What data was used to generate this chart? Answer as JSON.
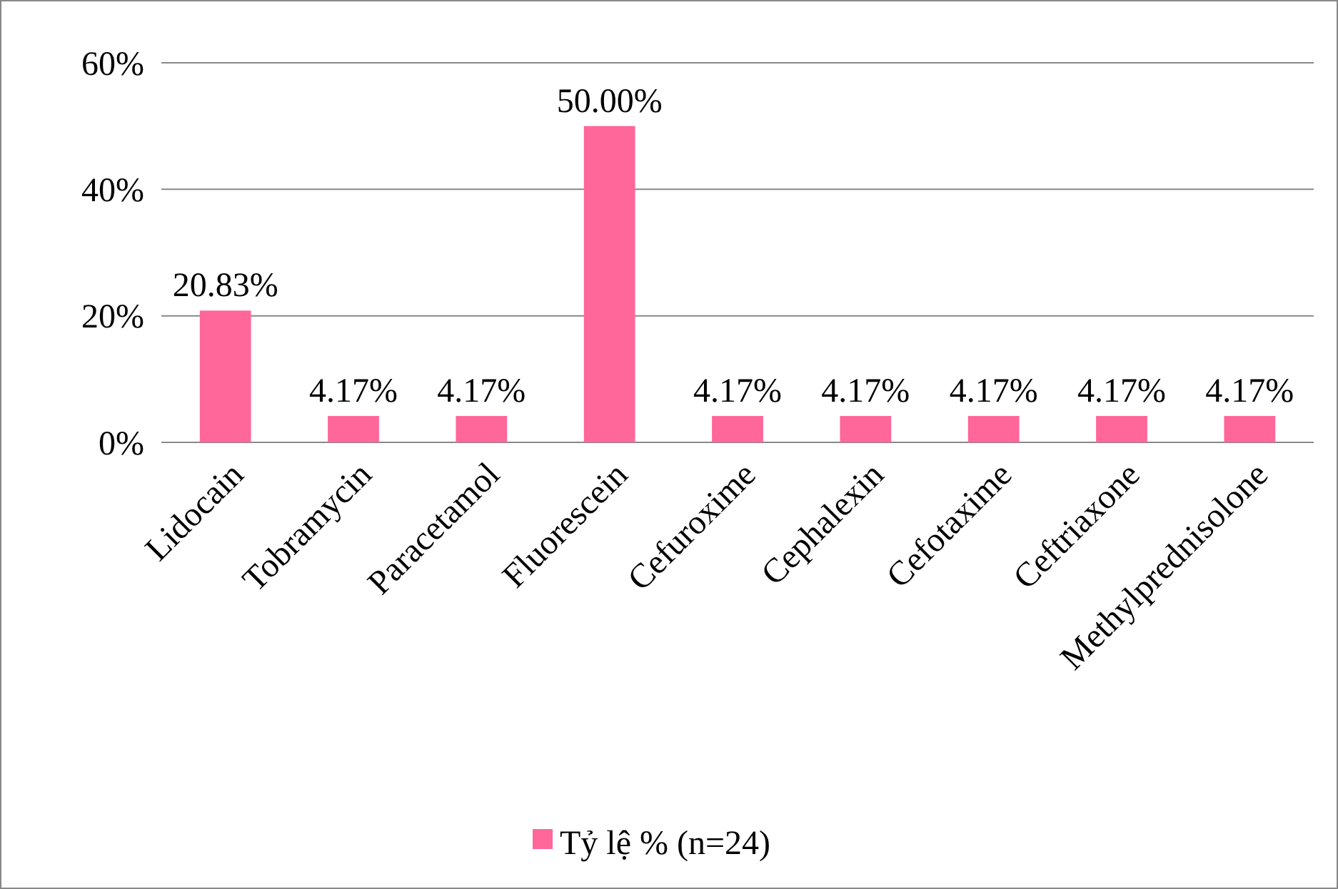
{
  "chart_data": {
    "type": "bar",
    "categories": [
      "Lidocain",
      "Tobramycin",
      "Paracetamol",
      "Fluorescein",
      "Cefuroxime",
      "Cephalexin",
      "Cefotaxime",
      "Ceftriaxone",
      "Methylprednisolone"
    ],
    "series": [
      {
        "name": "Tỷ lệ % (n=24)",
        "color": "#ff6699",
        "values": [
          20.83,
          4.17,
          4.17,
          50.0,
          4.17,
          4.17,
          4.17,
          4.17,
          4.17
        ],
        "value_labels": [
          "20.83%",
          "4.17%",
          "4.17%",
          "50.00%",
          "4.17%",
          "4.17%",
          "4.17%",
          "4.17%",
          "4.17%"
        ]
      }
    ],
    "ylim": [
      0,
      60
    ],
    "yticks": [
      {
        "value": 0,
        "label": "0%"
      },
      {
        "value": 20,
        "label": "20%"
      },
      {
        "value": 40,
        "label": "40%"
      },
      {
        "value": 60,
        "label": "60%"
      }
    ],
    "grid": "y",
    "legend": "bottom"
  }
}
